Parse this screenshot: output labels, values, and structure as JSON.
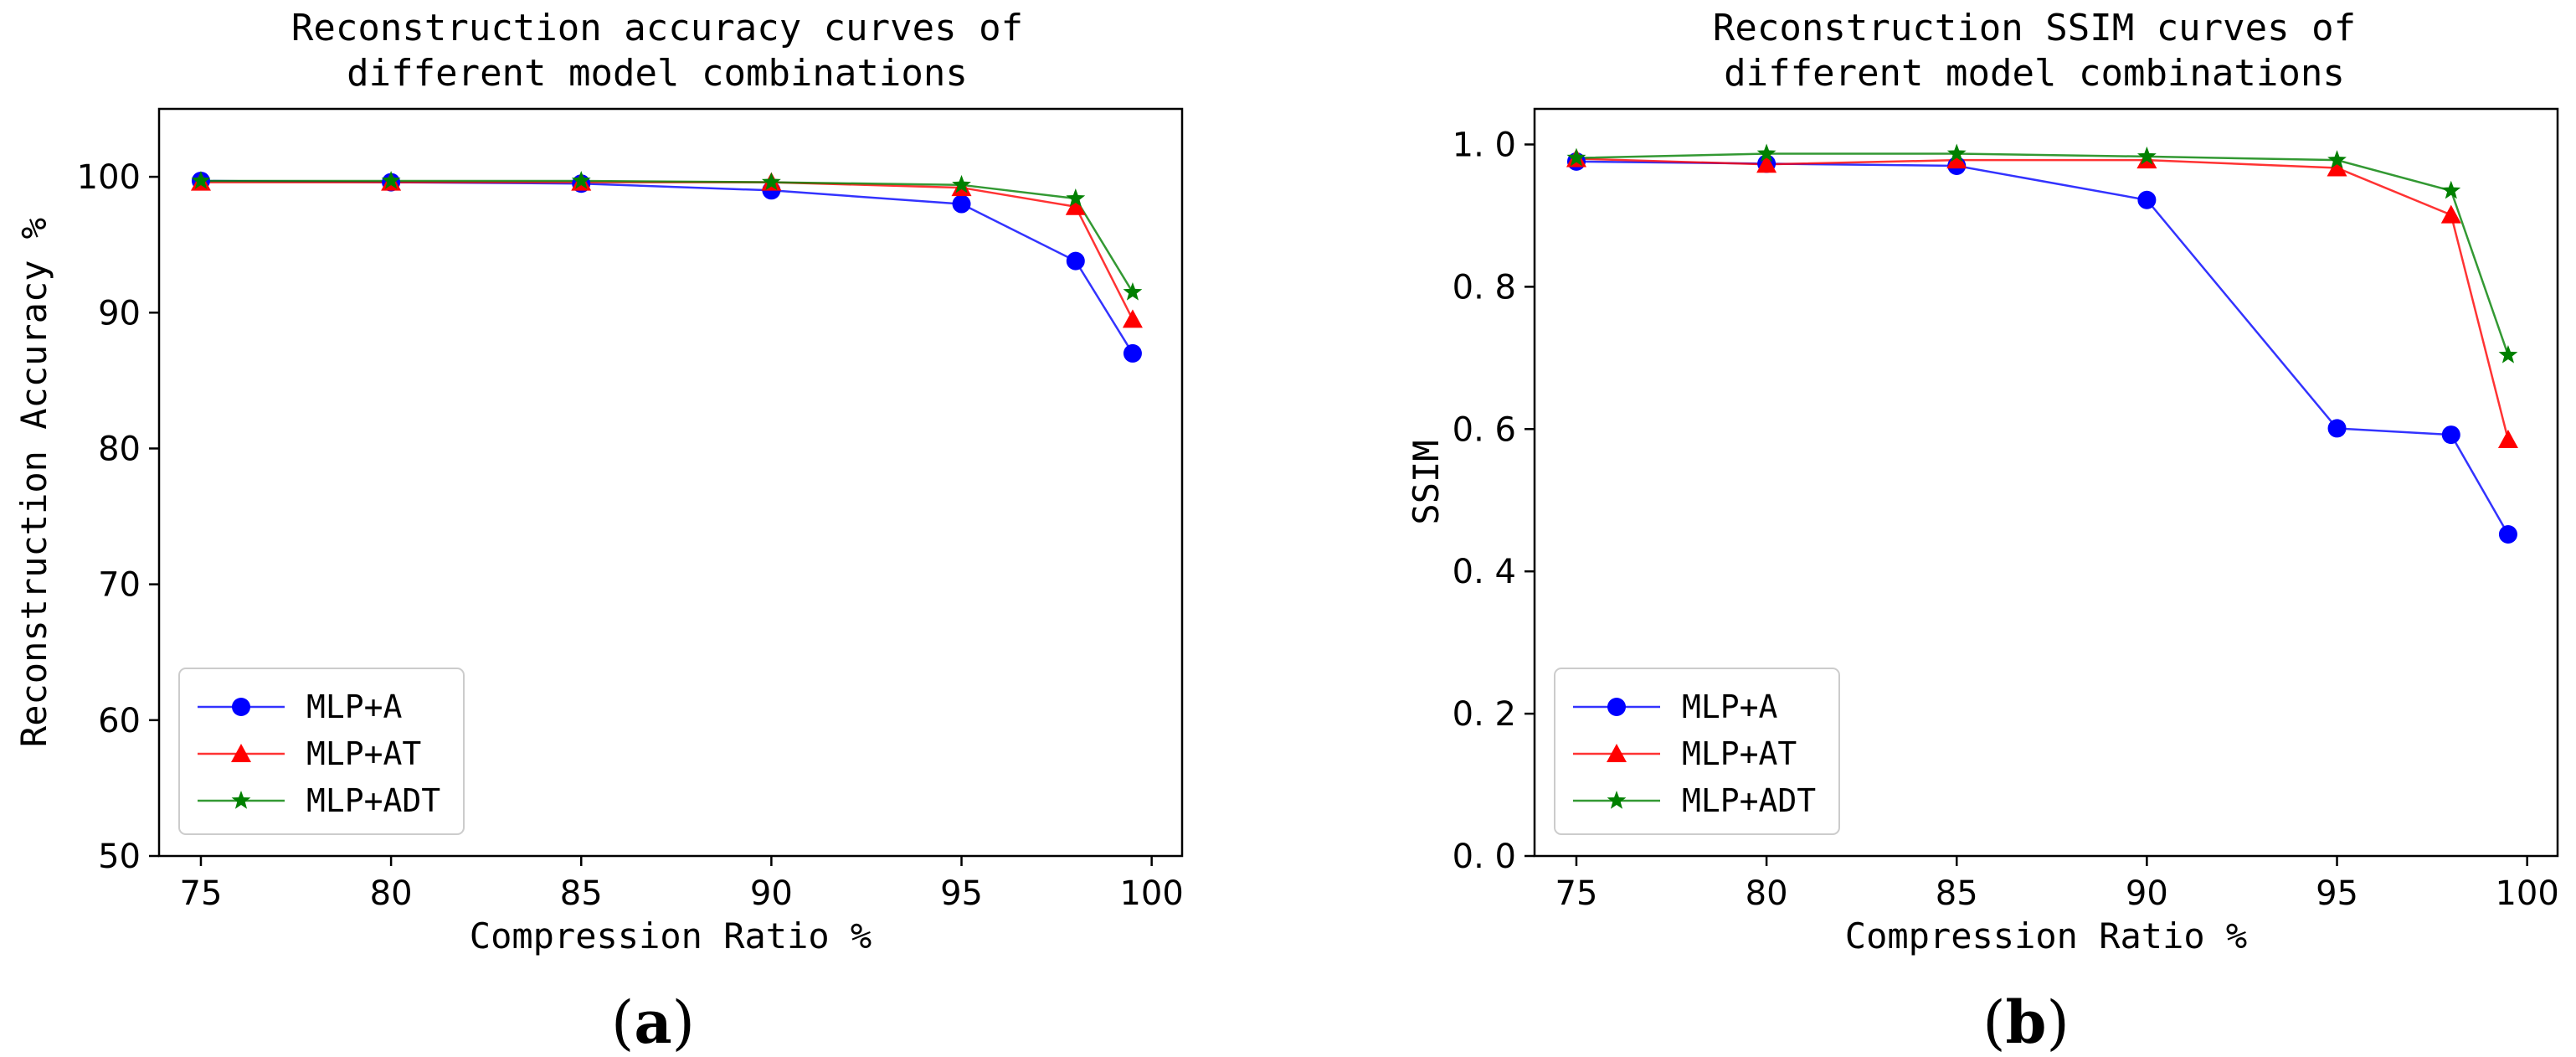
{
  "chart_data": [
    {
      "type": "line",
      "panel_label": {
        "open": "(",
        "letter": "a",
        "close": ")"
      },
      "title_lines": [
        "Reconstruction accuracy curves of",
        "different model combinations"
      ],
      "xlabel": "Compression Ratio %",
      "ylabel": "Reconstruction Accuracy %",
      "xlim": [
        73.9,
        100.8
      ],
      "ylim": [
        50,
        105
      ],
      "xticks": [
        75,
        80,
        85,
        90,
        95,
        100
      ],
      "yticks": [
        50,
        60,
        70,
        80,
        90,
        100
      ],
      "ytick_labels": [
        "50",
        "60",
        "70",
        "80",
        "90",
        "100"
      ],
      "legend_position": "lower-left",
      "x": [
        75,
        80,
        85,
        90,
        95,
        98,
        99.5
      ],
      "series": [
        {
          "name": "MLP+A",
          "color": "#0000ff",
          "marker": "circle",
          "values": [
            99.7,
            99.6,
            99.5,
            99.0,
            98.0,
            93.8,
            87.0
          ]
        },
        {
          "name": "MLP+AT",
          "color": "#ff0000",
          "marker": "triangle",
          "values": [
            99.6,
            99.6,
            99.6,
            99.6,
            99.2,
            97.8,
            89.5
          ]
        },
        {
          "name": "MLP+ADT",
          "color": "#008000",
          "marker": "star",
          "values": [
            99.7,
            99.7,
            99.7,
            99.6,
            99.4,
            98.4,
            91.5
          ]
        }
      ]
    },
    {
      "type": "line",
      "panel_label": {
        "open": "(",
        "letter": "b",
        "close": ")"
      },
      "title_lines": [
        "Reconstruction SSIM curves of",
        "different model combinations"
      ],
      "xlabel": "Compression Ratio %",
      "ylabel": "SSIM",
      "xlim": [
        73.9,
        100.8
      ],
      "ylim": [
        0,
        1.05
      ],
      "xticks": [
        75,
        80,
        85,
        90,
        95,
        100
      ],
      "yticks": [
        0,
        0.2,
        0.4,
        0.6,
        0.8,
        1.0
      ],
      "ytick_labels": [
        "0. 0",
        "0. 2",
        "0. 4",
        "0. 6",
        "0. 8",
        "1. 0"
      ],
      "legend_position": "lower-left",
      "x": [
        75,
        80,
        85,
        90,
        95,
        98,
        99.5
      ],
      "series": [
        {
          "name": "MLP+A",
          "color": "#0000ff",
          "marker": "circle",
          "values": [
            0.976,
            0.973,
            0.97,
            0.922,
            0.601,
            0.592,
            0.452
          ]
        },
        {
          "name": "MLP+AT",
          "color": "#ff0000",
          "marker": "triangle",
          "values": [
            0.98,
            0.972,
            0.978,
            0.978,
            0.967,
            0.901,
            0.585
          ]
        },
        {
          "name": "MLP+ADT",
          "color": "#008000",
          "marker": "star",
          "values": [
            0.981,
            0.987,
            0.987,
            0.983,
            0.978,
            0.935,
            0.704
          ]
        }
      ]
    }
  ]
}
